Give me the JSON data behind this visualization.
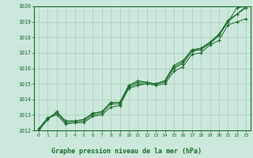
{
  "title": "Graphe pression niveau de la mer (hPa)",
  "bg_color": "#cce8dc",
  "grid_color": "#aaccbb",
  "line_color": "#1a6b2a",
  "border_color": "#1a6b2a",
  "x_min": 0,
  "x_max": 23,
  "y_min": 1012,
  "y_max": 1020,
  "yticks": [
    1012,
    1013,
    1014,
    1015,
    1016,
    1017,
    1018,
    1019,
    1020
  ],
  "xticks": [
    0,
    1,
    2,
    3,
    4,
    5,
    6,
    7,
    8,
    9,
    10,
    11,
    12,
    13,
    14,
    15,
    16,
    17,
    18,
    19,
    20,
    21,
    22,
    23
  ],
  "series": [
    [
      1012.1,
      1012.8,
      1013.1,
      1012.5,
      1012.5,
      1012.6,
      1013.0,
      1013.1,
      1013.7,
      1013.7,
      1014.8,
      1015.0,
      1015.0,
      1015.0,
      1015.1,
      1016.0,
      1016.3,
      1017.1,
      1017.2,
      1017.6,
      1018.1,
      1019.0,
      1019.9,
      1020.0
    ],
    [
      1012.1,
      1012.8,
      1013.0,
      1012.4,
      1012.5,
      1012.5,
      1012.9,
      1013.0,
      1013.5,
      1013.6,
      1014.7,
      1014.9,
      1015.0,
      1014.9,
      1015.0,
      1015.8,
      1016.1,
      1016.9,
      1017.0,
      1017.5,
      1017.8,
      1018.8,
      1019.0,
      1019.2
    ],
    [
      1012.0,
      1012.7,
      1013.2,
      1012.6,
      1012.6,
      1012.7,
      1013.1,
      1013.2,
      1013.8,
      1013.8,
      1014.9,
      1015.1,
      1015.1,
      1015.0,
      1015.2,
      1016.1,
      1016.4,
      1017.1,
      1017.3,
      1017.6,
      1018.2,
      1019.1,
      1019.5,
      1019.9
    ],
    [
      1012.0,
      1012.7,
      1013.2,
      1012.6,
      1012.6,
      1012.7,
      1013.1,
      1013.2,
      1013.8,
      1013.8,
      1014.9,
      1015.2,
      1015.1,
      1015.0,
      1015.2,
      1016.2,
      1016.5,
      1017.2,
      1017.3,
      1017.7,
      1018.2,
      1019.0,
      1019.5,
      1020.0
    ]
  ]
}
